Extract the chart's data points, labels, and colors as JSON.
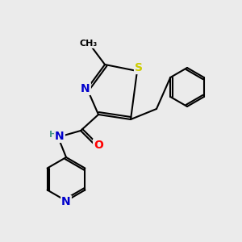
{
  "bg_color": "#ebebeb",
  "atom_colors": {
    "C": "#000000",
    "N": "#0000cc",
    "O": "#ff0000",
    "S": "#cccc00",
    "H": "#4a9a8a"
  },
  "bond_color": "#000000",
  "font_size_atom": 9,
  "fig_size": [
    3.0,
    3.0
  ],
  "dpi": 100
}
